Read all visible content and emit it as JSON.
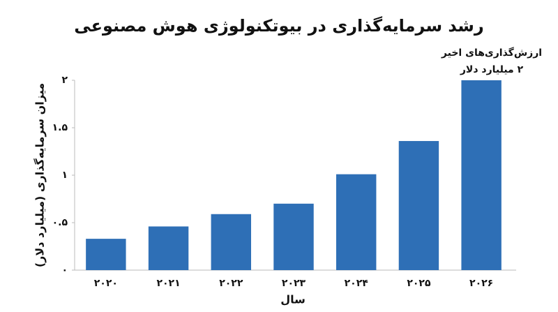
{
  "chart_data": {
    "type": "bar",
    "title": "رشد سرمایه‌گذاری در بیوتکنولوژی هوش مصنوعی",
    "x_label": "سال",
    "y_label": "میزان سرمایه‌گذاری (میلیارد دلار)",
    "annotation": [
      "ارزش‌گذاری‌های اخیر",
      "۲ میلیارد دلار"
    ],
    "categories": [
      "۲۰۲۰",
      "۲۰۲۱",
      "۲۰۲۲",
      "۲۰۲۳",
      "۲۰۲۴",
      "۲۰۲۵",
      "۲۰۲۶"
    ],
    "values": [
      0.33,
      0.46,
      0.59,
      0.7,
      1.01,
      1.36,
      2
    ],
    "color": "#2e6fb6",
    "ylim": [
      0,
      2
    ],
    "yticks": [
      {
        "value": 0,
        "label": "۰"
      },
      {
        "value": 0.5,
        "label": "۰.۵"
      },
      {
        "value": 1,
        "label": "۱"
      },
      {
        "value": 1.5,
        "label": "۱.۵"
      },
      {
        "value": 2,
        "label": "۲"
      }
    ],
    "grid": false
  }
}
